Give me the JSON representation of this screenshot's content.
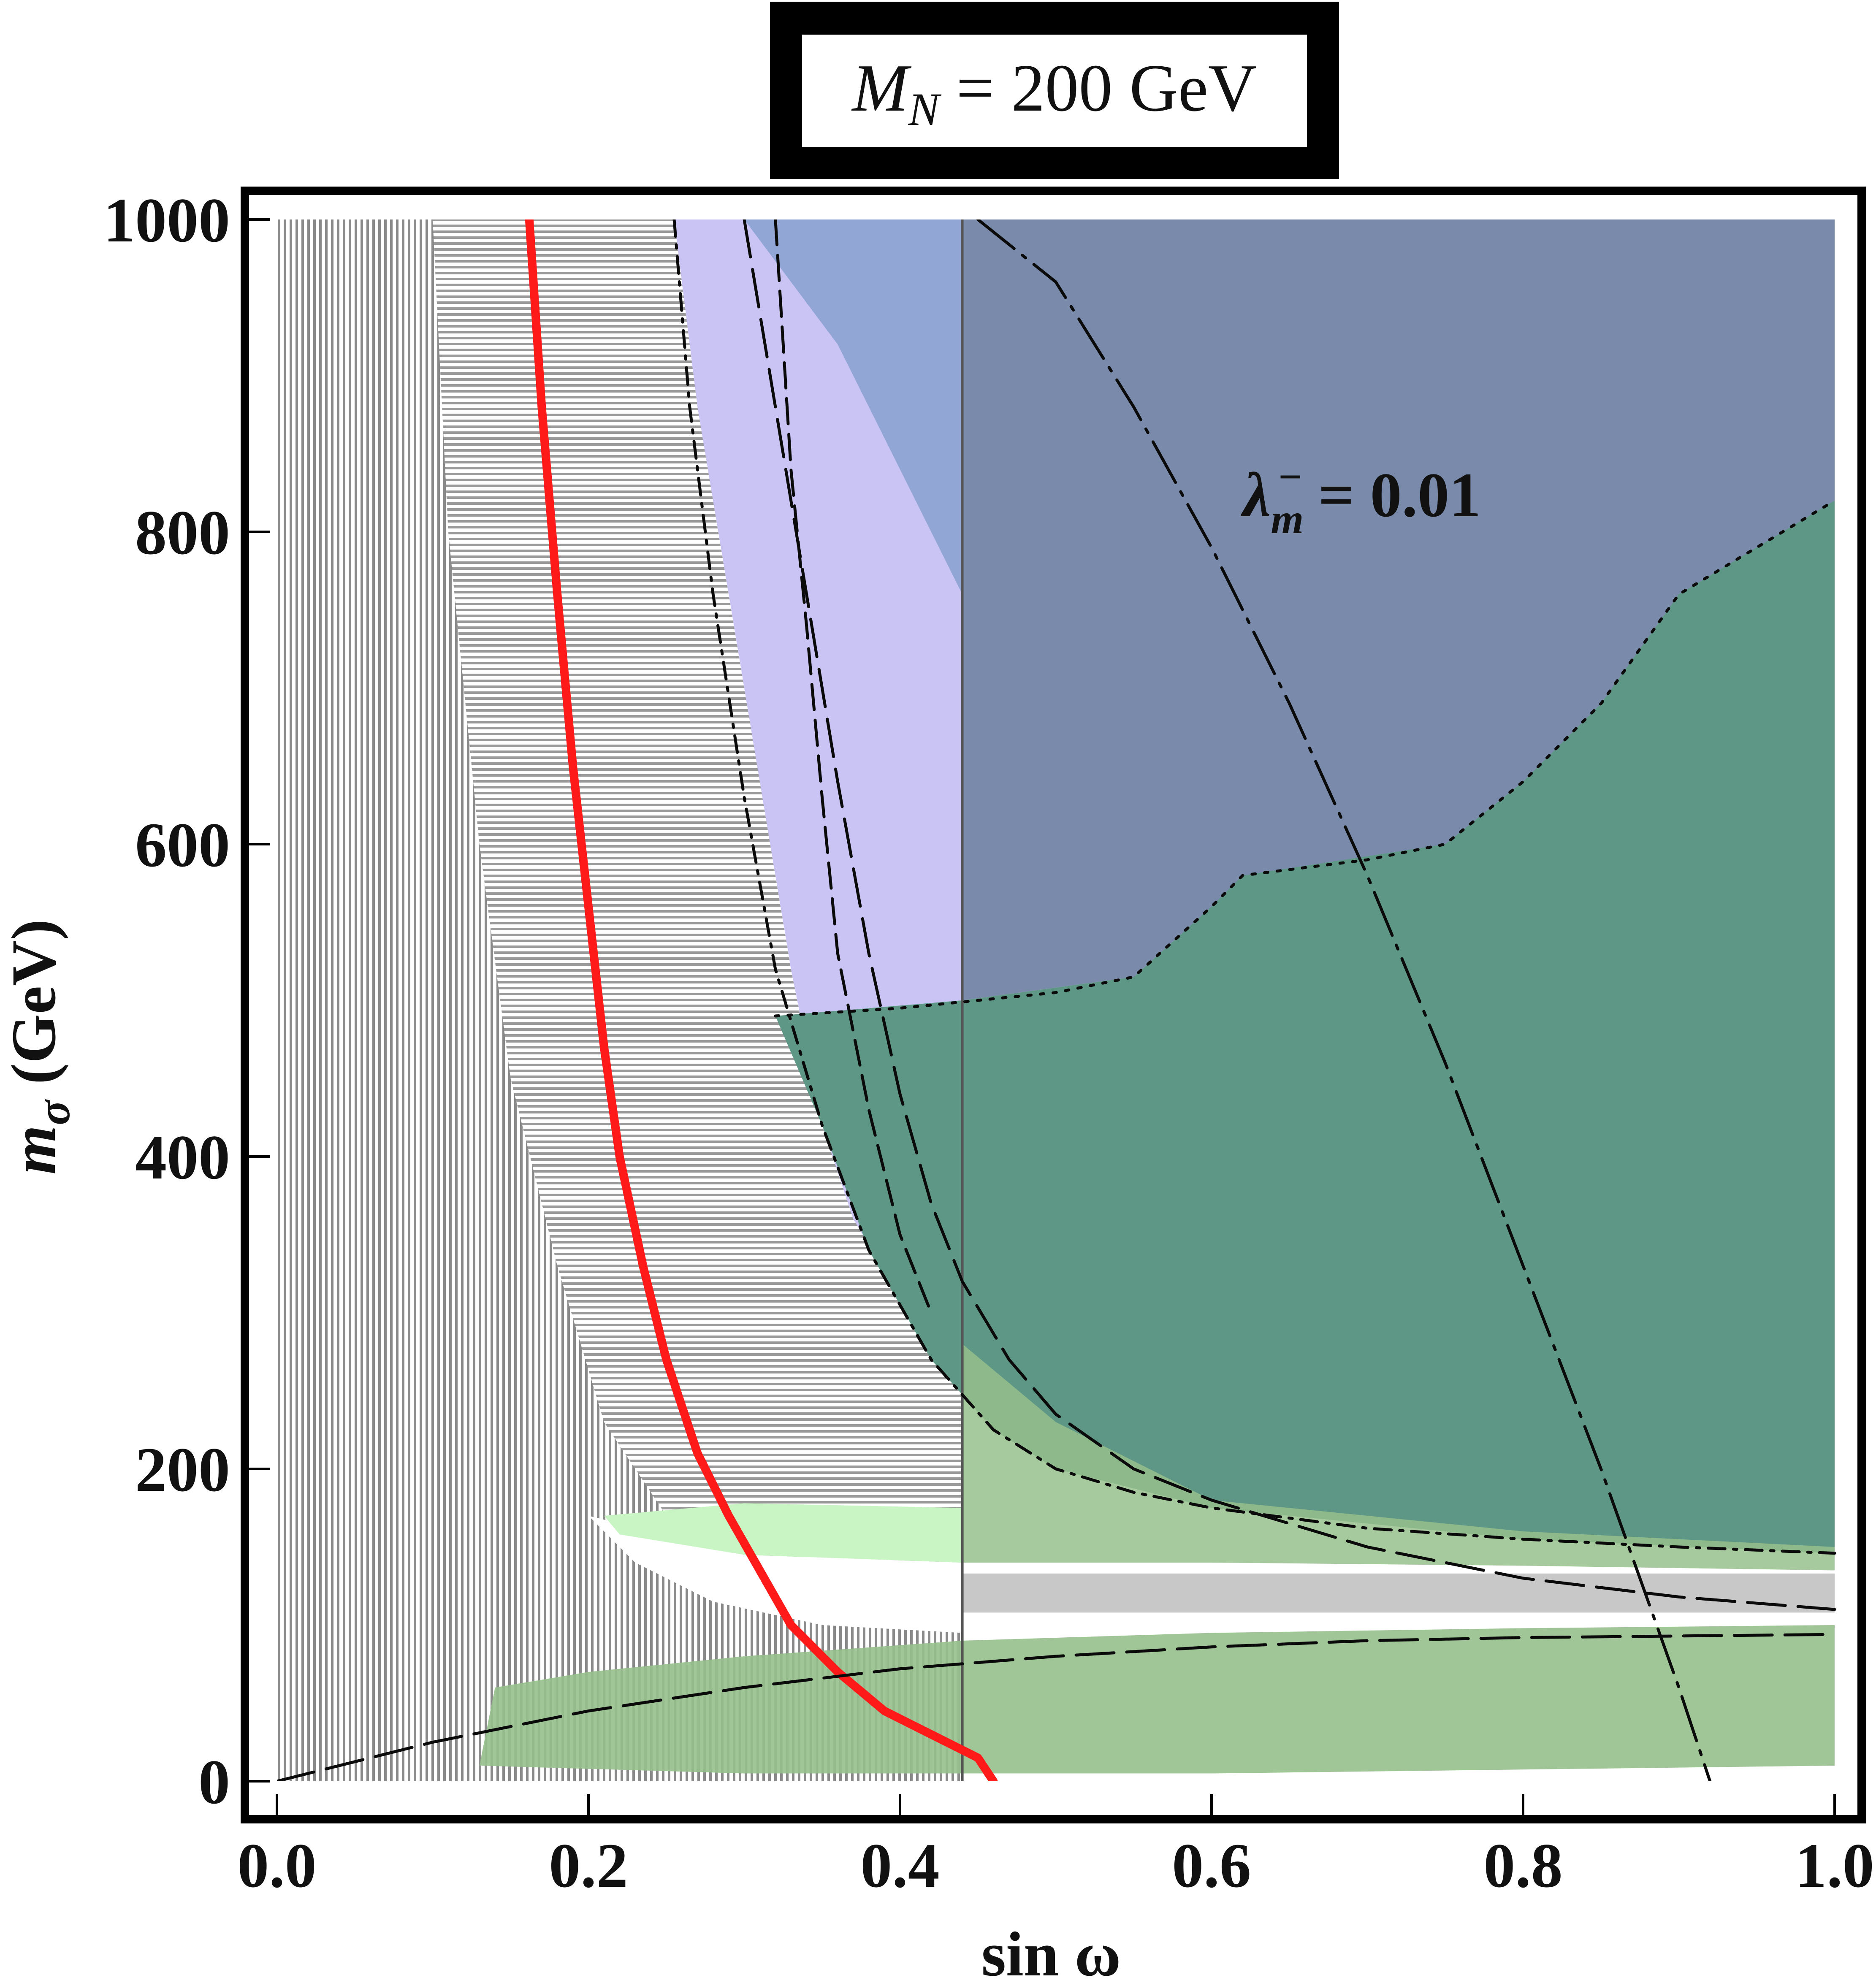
{
  "chart_data": {
    "type": "area",
    "title": "M_N = 200 GeV",
    "title_parts": {
      "symbol": "M",
      "subscript": "N",
      "rest": " = 200 GeV"
    },
    "xlabel": "sin ω",
    "ylabel_parts": {
      "symbol": "m",
      "subscript": "σ",
      "rest": " (GeV)"
    },
    "xlim": [
      0,
      1
    ],
    "ylim": [
      0,
      1000
    ],
    "xticks": [
      "0.0",
      "0.2",
      "0.4",
      "0.6",
      "0.8",
      "1.0"
    ],
    "yticks": [
      "0",
      "200",
      "400",
      "600",
      "800",
      "1000"
    ],
    "annotation": {
      "symbol": "λ",
      "subscript": "m",
      "superscript": "−",
      "rest": " = 0.01",
      "x": 0.62,
      "y": 810
    },
    "grid": false,
    "colors": {
      "red_line": "#ff1a1a",
      "purple_region": "#c9c4f4",
      "blue_region": "#92a6d6",
      "navy_region": "#7a8aab",
      "teal_region": "#5e9785",
      "green_region": "#96bf8c",
      "light_green_region": "#c8f5c3",
      "gray_band": "#c8c8c8"
    },
    "series": [
      {
        "style": "solid-red",
        "x": [
          0.162,
          0.17,
          0.18,
          0.19,
          0.2,
          0.21,
          0.22,
          0.235,
          0.25,
          0.27,
          0.29,
          0.31,
          0.33,
          0.36,
          0.39,
          0.42,
          0.45,
          0.46
        ],
        "y": [
          1000,
          880,
          760,
          650,
          560,
          470,
          400,
          330,
          270,
          210,
          170,
          135,
          100,
          70,
          45,
          30,
          15,
          0
        ]
      },
      {
        "style": "dash-dot",
        "x": [
          0.255,
          0.265,
          0.28,
          0.3,
          0.32,
          0.35,
          0.38,
          0.42,
          0.46,
          0.5,
          0.55,
          0.6,
          0.7,
          0.8,
          0.9,
          1.0
        ],
        "y": [
          1000,
          880,
          760,
          630,
          520,
          420,
          340,
          270,
          225,
          200,
          185,
          175,
          162,
          155,
          150,
          146
        ]
      },
      {
        "style": "long-dash",
        "x": [
          0.3,
          0.32,
          0.34,
          0.36,
          0.38,
          0.4,
          0.42,
          0.44,
          0.47,
          0.5,
          0.55,
          0.6,
          0.7,
          0.8,
          0.9,
          1.0
        ],
        "y": [
          1000,
          880,
          760,
          640,
          530,
          440,
          370,
          320,
          270,
          235,
          200,
          180,
          150,
          130,
          118,
          110
        ]
      },
      {
        "style": "dashed",
        "x": [
          0.32,
          0.325,
          0.33,
          0.34,
          0.35,
          0.36,
          0.38,
          0.4,
          0.42
        ],
        "y": [
          1000,
          920,
          840,
          740,
          630,
          530,
          430,
          350,
          300
        ]
      },
      {
        "style": "long-dash-dot",
        "x": [
          0.45,
          0.5,
          0.55,
          0.6,
          0.65,
          0.7,
          0.75,
          0.8,
          0.85,
          0.9,
          0.92
        ],
        "y": [
          1000,
          960,
          880,
          790,
          690,
          580,
          460,
          330,
          200,
          60,
          0
        ]
      },
      {
        "style": "long-dash",
        "x": [
          0.0,
          0.1,
          0.2,
          0.3,
          0.4,
          0.5,
          0.6,
          0.7,
          0.8,
          0.9,
          1.0
        ],
        "y": [
          0,
          25,
          45,
          60,
          72,
          80,
          86,
          90,
          92,
          93,
          94
        ]
      },
      {
        "style": "dotted",
        "x": [
          0.32,
          0.4,
          0.5,
          0.55,
          0.6,
          0.62,
          0.7,
          0.75,
          0.8,
          0.85,
          0.9,
          1.0
        ],
        "y": [
          490,
          495,
          505,
          515,
          560,
          580,
          590,
          600,
          640,
          690,
          760,
          820
        ]
      }
    ],
    "vertical_line": {
      "x": 0.44
    },
    "regions": [
      "vertical-hatch-gray",
      "horizontal-hatch-gray",
      "purple",
      "blue",
      "navy",
      "teal-green",
      "green",
      "light-green",
      "white",
      "gray-band"
    ]
  }
}
